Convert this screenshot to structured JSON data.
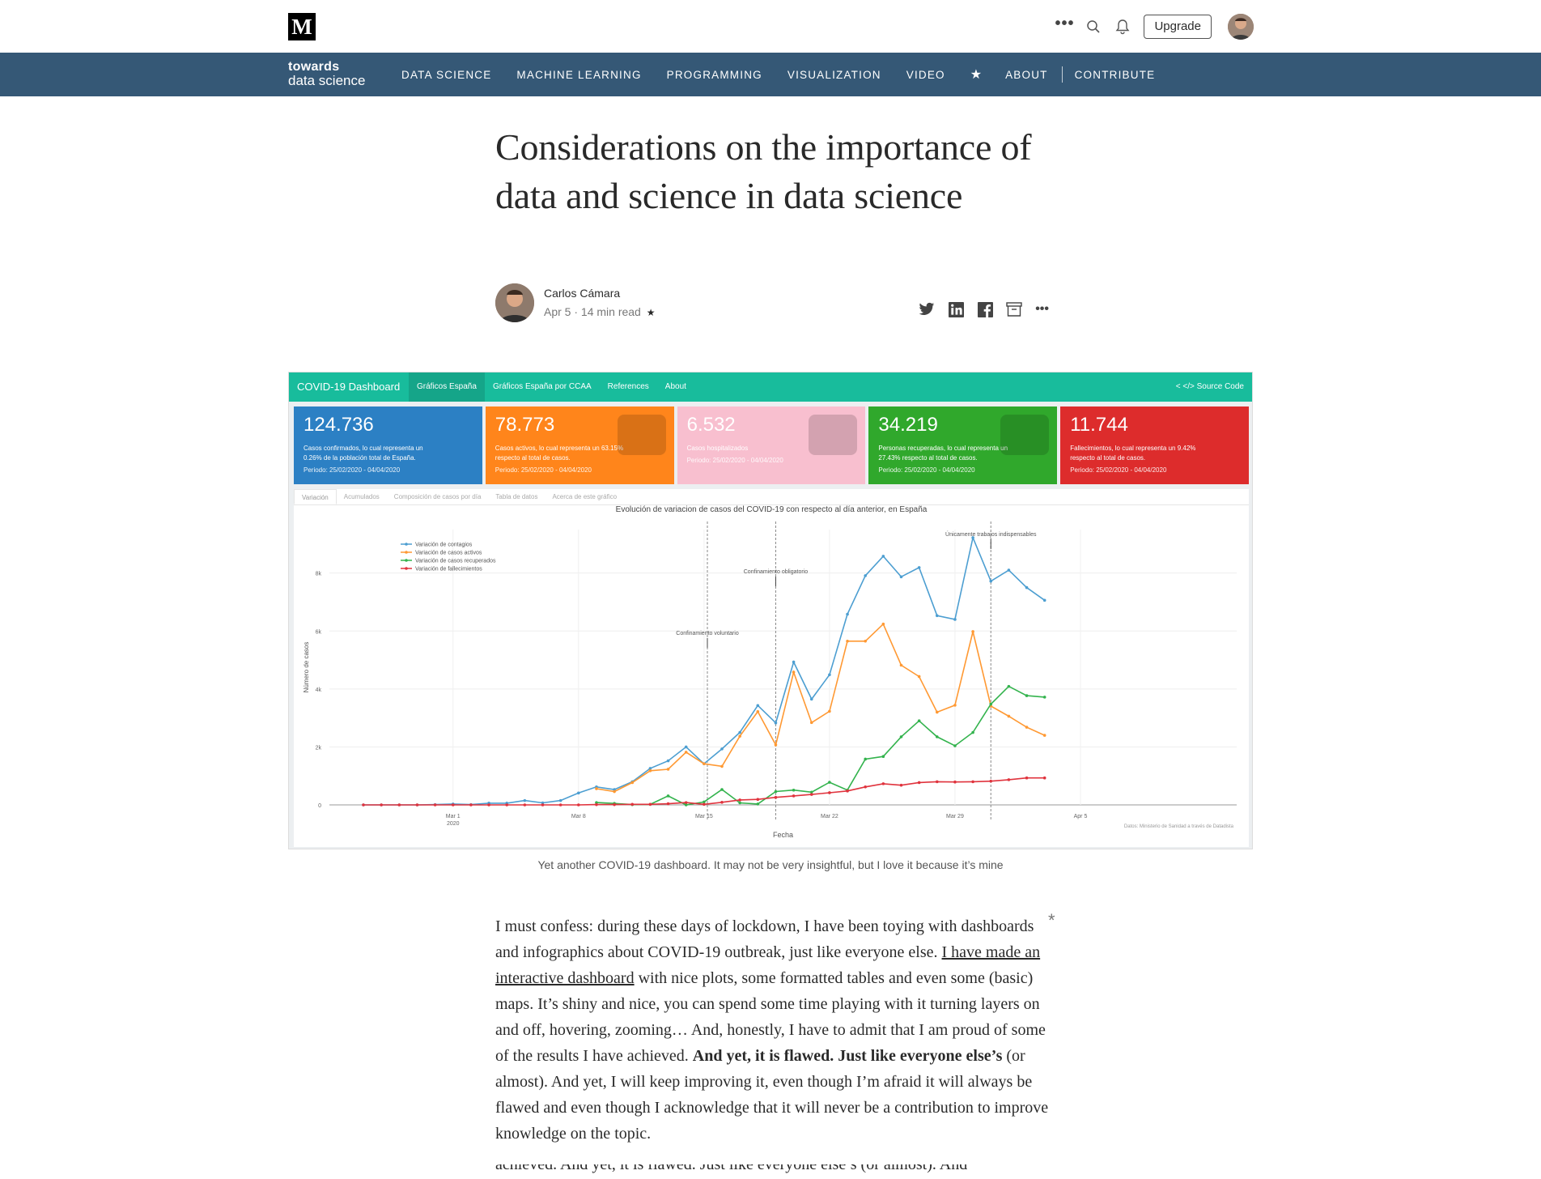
{
  "topbar": {
    "logo": "M",
    "more_label": "•••",
    "upgrade_label": "Upgrade"
  },
  "navbar": {
    "logo_line1": "towards",
    "logo_line2": "data science",
    "items": [
      "DATA SCIENCE",
      "MACHINE LEARNING",
      "PROGRAMMING",
      "VISUALIZATION",
      "VIDEO"
    ],
    "star": "★",
    "about": "ABOUT",
    "contribute": "CONTRIBUTE"
  },
  "article": {
    "title": "Considerations on the importance of data and science in data science",
    "author_name": "Carlos Cámara",
    "author_meta": "Apr 5 · 14 min read",
    "member_star": "★",
    "share_more": "•••",
    "caption": "Yet another COVID-19 dashboard. It may not be very insightful, but I love it because it’s mine",
    "margin_star": "*",
    "body_part1": "I must confess: during these days of lockdown, I have been toying with dashboards and infographics about COVID-19 outbreak, just like everyone else. ",
    "body_link": "I have made an interactive dashboard",
    "body_part2": " with nice plots, some formatted tables and even some (basic) maps. It’s shiny and nice, you can spend some time playing with it turning layers on and off, hovering, zooming… And, honestly, I have to admit that I am proud of some of the results I have achieved. ",
    "body_bold": "And yet, it is flawed. Just like everyone else’s",
    "body_part3": " (or almost). And yet, I will keep improving it, even though I’m afraid it will always be flawed and even though I acknowledge that it will never be a contribution to improve knowledge on the topic.",
    "body_ghost": "achieved. And yet, it is flawed. Just like everyone else’s (or almost). And"
  },
  "dashboard": {
    "brand": "COVID-19 Dashboard",
    "tabs": [
      "Gráficos España",
      "Gráficos España por CCAA",
      "References",
      "About"
    ],
    "right_links": "<  </> Source Code",
    "boxes": [
      {
        "num": "124.736",
        "text": "Casos confirmados, lo cual representa un 0.26% de la población total de España.",
        "period": "Periodo: 25/02/2020 - 04/04/2020",
        "color": "#2c80c4"
      },
      {
        "num": "78.773",
        "text": "Casos activos, lo cual representa un 63.15% respecto al total de casos.",
        "period": "Periodo: 25/02/2020 - 04/04/2020",
        "color": "#ff851b"
      },
      {
        "num": "6.532",
        "text": "Casos hospitalizados",
        "period": "Periodo: 25/02/2020 - 04/04/2020",
        "color": "#f8bfcf"
      },
      {
        "num": "34.219",
        "text": "Personas recuperadas, lo cual representa un 27.43% respecto al total de casos.",
        "period": "Periodo: 25/02/2020 - 04/04/2020",
        "color": "#30a82c"
      },
      {
        "num": "11.744",
        "text": "Fallecimientos, lo cual representa un 9.42% respecto al total de casos.",
        "period": "Periodo: 25/02/2020 - 04/04/2020",
        "color": "#dd2c2c"
      }
    ],
    "chart_tabs": [
      "Variación",
      "Acumulados",
      "Composición de casos por día",
      "Tabla de datos",
      "Acerca de este gráfico"
    ]
  },
  "chart_data": {
    "type": "line",
    "title": "Evolución de variacion de casos del COVID-19 con respecto al día anterior, en España",
    "xlabel": "Fecha",
    "ylabel": "Número de casos",
    "x_tick_labels": [
      "Mar 1\n2020",
      "Mar 8",
      "Mar 15",
      "Mar 22",
      "Mar 29",
      "Apr 5"
    ],
    "y_tick_labels": [
      "0",
      "2k",
      "4k",
      "6k",
      "8k"
    ],
    "ylim": [
      0,
      9500
    ],
    "source_note": "Datos: Ministerio de Sanidad a través de Datadista",
    "legend_position": "top-left",
    "annotations": [
      "Confinamiento voluntario",
      "Confinamiento obligatorio",
      "Únicamente trabajos indispensables"
    ],
    "x_dates": [
      "Feb 25",
      "Feb 26",
      "Feb 27",
      "Feb 28",
      "Feb 29",
      "Mar 1",
      "Mar 2",
      "Mar 3",
      "Mar 4",
      "Mar 5",
      "Mar 6",
      "Mar 7",
      "Mar 8",
      "Mar 9",
      "Mar 10",
      "Mar 11",
      "Mar 12",
      "Mar 13",
      "Mar 14",
      "Mar 15",
      "Mar 16",
      "Mar 17",
      "Mar 18",
      "Mar 19",
      "Mar 20",
      "Mar 21",
      "Mar 22",
      "Mar 23",
      "Mar 24",
      "Mar 25",
      "Mar 26",
      "Mar 27",
      "Mar 28",
      "Mar 29",
      "Mar 30",
      "Mar 31",
      "Apr 1",
      "Apr 2",
      "Apr 3"
    ],
    "series": [
      {
        "name": "Variación de contagios",
        "color": "#4c9ed1",
        "values": [
          0,
          0,
          0,
          0,
          10,
          30,
          10,
          60,
          60,
          150,
          70,
          150,
          410,
          620,
          530,
          800,
          1260,
          1520,
          2000,
          1420,
          1930,
          2500,
          3430,
          2830,
          4930,
          3650,
          4490,
          6580,
          7910,
          8580,
          7870,
          8190,
          6530,
          6400,
          9220,
          7720,
          8100,
          7500,
          7060
        ]
      },
      {
        "name": "Variación de casos activos",
        "color": "#ff9933",
        "values": [
          null,
          null,
          null,
          null,
          null,
          null,
          null,
          null,
          null,
          null,
          null,
          null,
          null,
          560,
          460,
          770,
          1180,
          1230,
          1820,
          1420,
          1330,
          2370,
          3220,
          2070,
          4580,
          2840,
          3230,
          5650,
          5650,
          6240,
          4820,
          4430,
          3200,
          3440,
          5980,
          3410,
          3060,
          2680,
          2400
        ]
      },
      {
        "name": "Variación de casos recuperados",
        "color": "#33b34d",
        "values": [
          null,
          null,
          null,
          null,
          null,
          null,
          null,
          null,
          null,
          null,
          null,
          null,
          null,
          80,
          50,
          10,
          20,
          310,
          0,
          100,
          530,
          70,
          30,
          460,
          510,
          440,
          780,
          510,
          1580,
          1670,
          2350,
          2900,
          2350,
          2040,
          2500,
          3480,
          4090,
          3770,
          3720
        ]
      },
      {
        "name": "Variación de fallecimientos",
        "color": "#e0333d",
        "values": [
          0,
          0,
          0,
          0,
          0,
          0,
          0,
          0,
          0,
          0,
          0,
          0,
          0,
          10,
          10,
          20,
          20,
          40,
          80,
          20,
          90,
          170,
          190,
          260,
          310,
          360,
          420,
          480,
          620,
          730,
          680,
          770,
          800,
          790,
          800,
          820,
          870,
          930,
          930
        ]
      }
    ]
  }
}
